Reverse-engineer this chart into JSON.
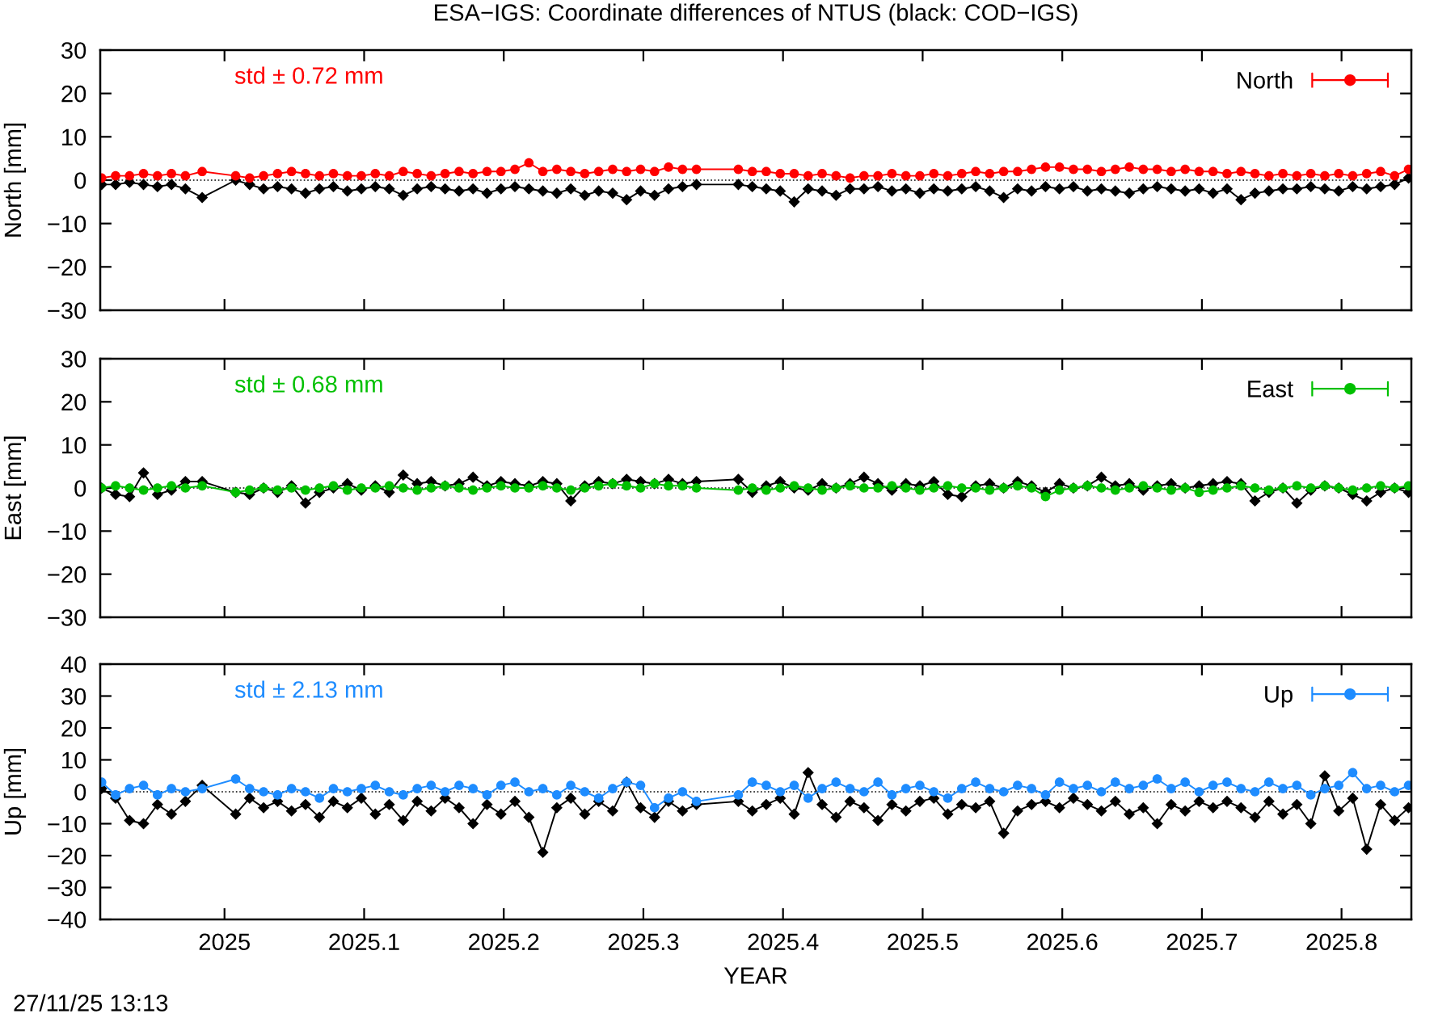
{
  "chart_data": [
    {
      "type": "line",
      "title": "ESA−IGS: Coordinate differences of NTUS (black: COD−IGS)",
      "ylabel": "North [mm]",
      "xlim": [
        2024.911,
        2025.85
      ],
      "xticks": [
        2025,
        2025.1,
        2025.2,
        2025.3,
        2025.4,
        2025.5,
        2025.6,
        2025.7,
        2025.8
      ],
      "ylim": [
        -30,
        30
      ],
      "yticks": [
        -30,
        -20,
        -10,
        0,
        10,
        20,
        30
      ],
      "tick_labels": "y",
      "legend": "top right",
      "grid": false,
      "annotations": [
        "std ± 0.72 mm"
      ],
      "ref_lines": [
        {
          "axis": "y",
          "value": 0,
          "line_style": "dotted",
          "color": "#000000"
        }
      ],
      "x": [
        2024.912,
        2024.922,
        2024.932,
        2024.942,
        2024.952,
        2024.962,
        2024.972,
        2024.984,
        2025.008,
        2025.018,
        2025.028,
        2025.038,
        2025.048,
        2025.058,
        2025.068,
        2025.078,
        2025.088,
        2025.098,
        2025.108,
        2025.118,
        2025.128,
        2025.138,
        2025.148,
        2025.158,
        2025.168,
        2025.178,
        2025.188,
        2025.198,
        2025.208,
        2025.218,
        2025.228,
        2025.238,
        2025.248,
        2025.258,
        2025.268,
        2025.278,
        2025.288,
        2025.298,
        2025.308,
        2025.318,
        2025.328,
        2025.338,
        2025.368,
        2025.378,
        2025.388,
        2025.398,
        2025.408,
        2025.418,
        2025.428,
        2025.438,
        2025.448,
        2025.458,
        2025.468,
        2025.478,
        2025.488,
        2025.498,
        2025.508,
        2025.518,
        2025.528,
        2025.538,
        2025.548,
        2025.558,
        2025.568,
        2025.578,
        2025.588,
        2025.598,
        2025.608,
        2025.618,
        2025.628,
        2025.638,
        2025.648,
        2025.658,
        2025.668,
        2025.678,
        2025.688,
        2025.698,
        2025.708,
        2025.718,
        2025.728,
        2025.738,
        2025.748,
        2025.758,
        2025.768,
        2025.778,
        2025.788,
        2025.798,
        2025.808,
        2025.818,
        2025.828,
        2025.838,
        2025.848
      ],
      "series": [
        {
          "color": "#000000",
          "marker": "diamond",
          "values": [
            -1,
            -1,
            -0.5,
            -1,
            -1.5,
            -1,
            -2,
            -4,
            0,
            -1,
            -2,
            -1.5,
            -2,
            -3,
            -2,
            -1.5,
            -2.5,
            -2,
            -1.5,
            -2,
            -3.5,
            -2,
            -1.5,
            -2,
            -2.5,
            -2,
            -3,
            -2,
            -1.5,
            -2,
            -2.5,
            -3,
            -2,
            -3.5,
            -2.5,
            -3,
            -4.5,
            -2.5,
            -3.5,
            -2,
            -1.5,
            -1,
            -1,
            -1.5,
            -2,
            -2.5,
            -5,
            -2,
            -2.5,
            -3.5,
            -2,
            -2,
            -1.5,
            -2.5,
            -2,
            -3,
            -2,
            -2.5,
            -2,
            -1.5,
            -2.5,
            -4,
            -2,
            -2.5,
            -1.5,
            -2,
            -1.5,
            -2.5,
            -2,
            -2.5,
            -3,
            -2,
            -1.5,
            -2,
            -2.5,
            -2,
            -3,
            -2,
            -4.5,
            -3,
            -2.5,
            -2,
            -2,
            -1.5,
            -2,
            -2.5,
            -1.5,
            -2,
            -1.5,
            -1,
            0.5
          ]
        },
        {
          "name": "North",
          "color": "#ff0000",
          "marker": "circle",
          "values": [
            0.5,
            1,
            1,
            1.5,
            1,
            1.5,
            1,
            2,
            1,
            0.5,
            1,
            1.5,
            2,
            1.5,
            1,
            1.5,
            1,
            1,
            1.5,
            1,
            2,
            1.5,
            1,
            1.5,
            2,
            1.5,
            2,
            2,
            2.5,
            4,
            2,
            2.5,
            2,
            1.5,
            2,
            2.5,
            2,
            2.5,
            2,
            3,
            2.5,
            2.5,
            2.5,
            2,
            2,
            1.5,
            1.5,
            1,
            1.5,
            1,
            0.5,
            1,
            1,
            1.5,
            1,
            1,
            1.5,
            1,
            1.5,
            2,
            1.5,
            2,
            2,
            2.5,
            3,
            3,
            2.5,
            2.5,
            2,
            2.5,
            3,
            2.5,
            2.5,
            2,
            2.5,
            2,
            2,
            1.5,
            2,
            1.5,
            1,
            1.5,
            1,
            1.5,
            1,
            1.5,
            1,
            1.5,
            2,
            1,
            2.5
          ]
        }
      ]
    },
    {
      "type": "line",
      "ylabel": "East [mm]",
      "xlim": [
        2024.911,
        2025.85
      ],
      "xticks": [
        2025,
        2025.1,
        2025.2,
        2025.3,
        2025.4,
        2025.5,
        2025.6,
        2025.7,
        2025.8
      ],
      "ylim": [
        -30,
        30
      ],
      "yticks": [
        -30,
        -20,
        -10,
        0,
        10,
        20,
        30
      ],
      "tick_labels": "y",
      "legend": "top right",
      "grid": false,
      "annotations": [
        "std ± 0.68 mm"
      ],
      "ref_lines": [
        {
          "axis": "y",
          "value": 0,
          "line_style": "dotted",
          "color": "#000000"
        }
      ],
      "x": [
        2024.912,
        2024.922,
        2024.932,
        2024.942,
        2024.952,
        2024.962,
        2024.972,
        2024.984,
        2025.008,
        2025.018,
        2025.028,
        2025.038,
        2025.048,
        2025.058,
        2025.068,
        2025.078,
        2025.088,
        2025.098,
        2025.108,
        2025.118,
        2025.128,
        2025.138,
        2025.148,
        2025.158,
        2025.168,
        2025.178,
        2025.188,
        2025.198,
        2025.208,
        2025.218,
        2025.228,
        2025.238,
        2025.248,
        2025.258,
        2025.268,
        2025.278,
        2025.288,
        2025.298,
        2025.308,
        2025.318,
        2025.328,
        2025.338,
        2025.368,
        2025.378,
        2025.388,
        2025.398,
        2025.408,
        2025.418,
        2025.428,
        2025.438,
        2025.448,
        2025.458,
        2025.468,
        2025.478,
        2025.488,
        2025.498,
        2025.508,
        2025.518,
        2025.528,
        2025.538,
        2025.548,
        2025.558,
        2025.568,
        2025.578,
        2025.588,
        2025.598,
        2025.608,
        2025.618,
        2025.628,
        2025.638,
        2025.648,
        2025.658,
        2025.668,
        2025.678,
        2025.688,
        2025.698,
        2025.708,
        2025.718,
        2025.728,
        2025.738,
        2025.748,
        2025.758,
        2025.768,
        2025.778,
        2025.788,
        2025.798,
        2025.808,
        2025.818,
        2025.828,
        2025.838,
        2025.848
      ],
      "series": [
        {
          "color": "#000000",
          "marker": "diamond",
          "values": [
            0,
            -1.5,
            -2,
            3.5,
            -1.5,
            -0.5,
            1.5,
            1.5,
            -1,
            -1.5,
            0,
            -1,
            0.5,
            -3.5,
            -1,
            0,
            1,
            -0.5,
            0.5,
            -1,
            3,
            1,
            1.5,
            0.5,
            1,
            2.5,
            0.5,
            1.5,
            1,
            0.5,
            1.5,
            1,
            -3,
            0.5,
            1.5,
            1,
            2,
            1.5,
            1,
            2,
            1,
            1.5,
            2,
            -1,
            0.5,
            1.5,
            0,
            -0.5,
            1,
            0,
            1,
            2.5,
            1,
            -0.5,
            1,
            0.5,
            1.5,
            -1.5,
            -2,
            0.5,
            1,
            0,
            1.5,
            0.5,
            -1,
            1,
            0,
            0.5,
            2.5,
            0.5,
            1,
            -0.5,
            0.5,
            1,
            0,
            0.5,
            1,
            1.5,
            1,
            -3,
            -1,
            0,
            -3.5,
            -0.5,
            0.5,
            0,
            -1.5,
            -3,
            -1,
            0,
            -1
          ]
        },
        {
          "name": "East",
          "color": "#00c000",
          "marker": "circle",
          "values": [
            0,
            0.5,
            0,
            -0.5,
            0,
            0.5,
            0,
            0.5,
            -1,
            -0.5,
            0,
            -0.5,
            0,
            -0.5,
            0,
            0.5,
            -0.5,
            0,
            0,
            0.5,
            0,
            -0.5,
            0,
            0.5,
            0,
            -0.5,
            0,
            0.5,
            0,
            0,
            0.5,
            0,
            -0.5,
            0,
            0.5,
            1,
            0.5,
            0,
            1,
            0.5,
            0.5,
            0,
            -0.5,
            0,
            -0.5,
            0,
            0.5,
            0,
            -0.5,
            0,
            0.5,
            0,
            0,
            0.5,
            0,
            -0.5,
            0,
            0.5,
            0,
            0,
            -0.5,
            0,
            0.5,
            0,
            -2,
            -0.5,
            0,
            0.5,
            0,
            -0.5,
            0,
            0.5,
            0,
            -0.5,
            0,
            -1,
            -0.5,
            0,
            0.5,
            0,
            -0.5,
            0,
            0.5,
            0,
            0.5,
            0,
            -0.5,
            0,
            0.5,
            0,
            0.5
          ]
        }
      ]
    },
    {
      "type": "line",
      "ylabel": "Up [mm]",
      "xlabel": "YEAR",
      "xlim": [
        2024.911,
        2025.85
      ],
      "xticks": [
        2025,
        2025.1,
        2025.2,
        2025.3,
        2025.4,
        2025.5,
        2025.6,
        2025.7,
        2025.8
      ],
      "ylim": [
        -40,
        40
      ],
      "yticks": [
        -40,
        -30,
        -20,
        -10,
        0,
        10,
        20,
        30,
        40
      ],
      "legend": "top right",
      "grid": false,
      "annotations": [
        "std ± 2.13 mm",
        "27/11/25 13:13"
      ],
      "ref_lines": [
        {
          "axis": "y",
          "value": 0,
          "line_style": "dotted",
          "color": "#000000"
        }
      ],
      "x": [
        2024.912,
        2024.922,
        2024.932,
        2024.942,
        2024.952,
        2024.962,
        2024.972,
        2024.984,
        2025.008,
        2025.018,
        2025.028,
        2025.038,
        2025.048,
        2025.058,
        2025.068,
        2025.078,
        2025.088,
        2025.098,
        2025.108,
        2025.118,
        2025.128,
        2025.138,
        2025.148,
        2025.158,
        2025.168,
        2025.178,
        2025.188,
        2025.198,
        2025.208,
        2025.218,
        2025.228,
        2025.238,
        2025.248,
        2025.258,
        2025.268,
        2025.278,
        2025.288,
        2025.298,
        2025.308,
        2025.318,
        2025.328,
        2025.338,
        2025.368,
        2025.378,
        2025.388,
        2025.398,
        2025.408,
        2025.418,
        2025.428,
        2025.438,
        2025.448,
        2025.458,
        2025.468,
        2025.478,
        2025.488,
        2025.498,
        2025.508,
        2025.518,
        2025.528,
        2025.538,
        2025.548,
        2025.558,
        2025.568,
        2025.578,
        2025.588,
        2025.598,
        2025.608,
        2025.618,
        2025.628,
        2025.638,
        2025.648,
        2025.658,
        2025.668,
        2025.678,
        2025.688,
        2025.698,
        2025.708,
        2025.718,
        2025.728,
        2025.738,
        2025.748,
        2025.758,
        2025.768,
        2025.778,
        2025.788,
        2025.798,
        2025.808,
        2025.818,
        2025.828,
        2025.838,
        2025.848
      ],
      "series": [
        {
          "color": "#000000",
          "marker": "diamond",
          "values": [
            1,
            -2,
            -9,
            -10,
            -4,
            -7,
            -3,
            2,
            -7,
            -2,
            -5,
            -3,
            -6,
            -4,
            -8,
            -3,
            -5,
            -2,
            -7,
            -4,
            -9,
            -3,
            -6,
            -2,
            -5,
            -10,
            -4,
            -7,
            -3,
            -8,
            -19,
            -5,
            -2,
            -7,
            -3,
            -6,
            3,
            -5,
            -8,
            -3,
            -6,
            -4,
            -3,
            -6,
            -4,
            -2,
            -7,
            6,
            -4,
            -8,
            -3,
            -5,
            -9,
            -4,
            -6,
            -3,
            -2,
            -7,
            -4,
            -5,
            -3,
            -13,
            -6,
            -4,
            -3,
            -5,
            -2,
            -4,
            -6,
            -3,
            -7,
            -5,
            -10,
            -4,
            -6,
            -3,
            -5,
            -3,
            -5,
            -8,
            -3,
            -7,
            -4,
            -10,
            5,
            -6,
            -2,
            -18,
            -4,
            -9,
            -5
          ]
        },
        {
          "name": "Up",
          "color": "#1e8cff",
          "marker": "circle",
          "values": [
            3,
            -1,
            1,
            2,
            -1,
            1,
            0,
            1,
            4,
            1,
            0,
            -1,
            1,
            0,
            -2,
            1,
            0,
            1,
            2,
            0,
            -1,
            1,
            2,
            0,
            2,
            1,
            -1,
            2,
            3,
            0,
            1,
            -1,
            2,
            0,
            -2,
            1,
            3,
            2,
            -5,
            -2,
            0,
            -3,
            -1,
            3,
            2,
            0,
            2,
            -2,
            1,
            3,
            1,
            0,
            3,
            -1,
            1,
            2,
            0,
            -2,
            1,
            3,
            1,
            0,
            2,
            1,
            -1,
            3,
            1,
            2,
            0,
            3,
            1,
            2,
            4,
            1,
            3,
            0,
            2,
            3,
            1,
            0,
            3,
            1,
            2,
            -1,
            1,
            2,
            6,
            1,
            2,
            0,
            2
          ]
        }
      ]
    }
  ]
}
